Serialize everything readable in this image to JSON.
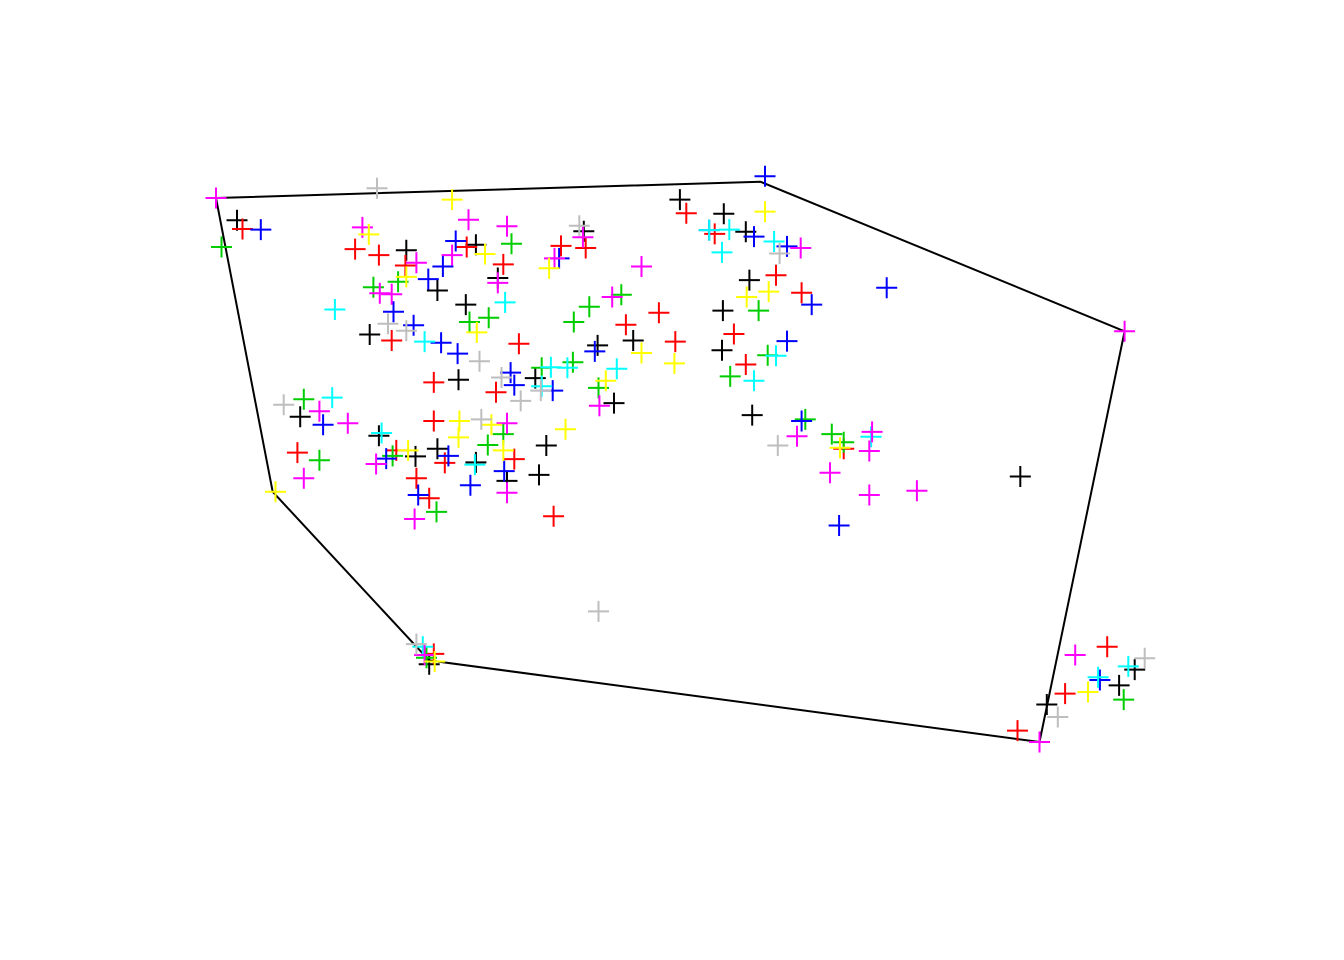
{
  "chart_data": {
    "type": "scatter",
    "title": "",
    "xlabel": "",
    "ylabel": "",
    "xlim": [
      0,
      100
    ],
    "ylim": [
      0,
      100
    ],
    "grid": false,
    "axes": false,
    "legend": "none",
    "marker": "plus",
    "palette": [
      "#000000",
      "#ff0000",
      "#00cd00",
      "#0000ff",
      "#00ffff",
      "#ff00ff",
      "#ffff00",
      "#bebebe"
    ],
    "hull": [
      [
        0.0,
        100.0
      ],
      [
        59.5,
        103.0
      ],
      [
        99.3,
        75.5
      ],
      [
        90.0,
        0.0
      ],
      [
        23.3,
        15.0
      ],
      [
        6.2,
        46.0
      ],
      [
        0.0,
        100.0
      ]
    ],
    "series": [
      {
        "color": "#000000",
        "points": [
          [
            2.3,
            95.9
          ],
          [
            20.8,
            90.4
          ],
          [
            27.3,
            80.4
          ],
          [
            16.8,
            74.9
          ],
          [
            26.5,
            66.6
          ],
          [
            9.2,
            59.8
          ],
          [
            17.8,
            56.3
          ],
          [
            21.8,
            52.5
          ],
          [
            28.4,
            51.4
          ],
          [
            31.8,
            48.0
          ],
          [
            36.1,
            54.5
          ],
          [
            30.8,
            85.3
          ],
          [
            50.7,
            99.7
          ],
          [
            55.5,
            97.1
          ],
          [
            57.9,
            93.8
          ],
          [
            55.3,
            72.0
          ],
          [
            45.6,
            73.8
          ],
          [
            41.7,
            72.9
          ],
          [
            34.9,
            66.9
          ],
          [
            43.5,
            62.3
          ],
          [
            58.3,
            84.9
          ],
          [
            55.4,
            79.3
          ],
          [
            58.6,
            60.1
          ],
          [
            35.3,
            49.1
          ],
          [
            23.3,
            14.3
          ],
          [
            24.2,
            53.9
          ],
          [
            87.9,
            48.8
          ],
          [
            90.8,
            6.9
          ],
          [
            98.7,
            10.4
          ],
          [
            100.4,
            13.3
          ],
          [
            28.4,
            91.4
          ],
          [
            40.2,
            93.9
          ],
          [
            24.2,
            83.0
          ]
        ]
      },
      {
        "color": "#ff0000",
        "points": [
          [
            2.9,
            94.3
          ],
          [
            15.2,
            90.6
          ],
          [
            17.8,
            89.5
          ],
          [
            20.7,
            87.6
          ],
          [
            19.2,
            73.8
          ],
          [
            33.1,
            73.2
          ],
          [
            30.6,
            64.3
          ],
          [
            23.8,
            66.1
          ],
          [
            23.8,
            59.0
          ],
          [
            8.9,
            53.2
          ],
          [
            19.7,
            53.6
          ],
          [
            21.9,
            48.5
          ],
          [
            25.0,
            51.3
          ],
          [
            32.6,
            52.0
          ],
          [
            23.3,
            44.8
          ],
          [
            36.9,
            41.5
          ],
          [
            48.4,
            78.9
          ],
          [
            50.2,
            73.6
          ],
          [
            44.8,
            76.7
          ],
          [
            56.6,
            75.0
          ],
          [
            57.9,
            69.4
          ],
          [
            51.4,
            97.2
          ],
          [
            54.5,
            93.4
          ],
          [
            61.2,
            85.8
          ],
          [
            64.0,
            82.6
          ],
          [
            92.8,
            8.9
          ],
          [
            97.4,
            17.5
          ],
          [
            87.6,
            2.1
          ],
          [
            68.6,
            53.9
          ],
          [
            23.8,
            16.2
          ],
          [
            37.7,
            91.2
          ],
          [
            31.4,
            87.8
          ],
          [
            40.4,
            90.8
          ],
          [
            27.4,
            91.0
          ]
        ]
      },
      {
        "color": "#00cd00",
        "points": [
          [
            0.6,
            91.0
          ],
          [
            17.2,
            83.6
          ],
          [
            19.9,
            84.6
          ],
          [
            32.3,
            91.6
          ],
          [
            39.1,
            77.2
          ],
          [
            40.8,
            80.0
          ],
          [
            44.3,
            82.2
          ],
          [
            39.0,
            69.8
          ],
          [
            29.8,
            78.0
          ],
          [
            9.6,
            63.0
          ],
          [
            11.3,
            51.8
          ],
          [
            19.3,
            52.6
          ],
          [
            24.1,
            42.3
          ],
          [
            29.7,
            54.6
          ],
          [
            31.4,
            56.6
          ],
          [
            41.8,
            65.1
          ],
          [
            60.3,
            71.1
          ],
          [
            59.3,
            79.3
          ],
          [
            64.4,
            59.3
          ],
          [
            67.3,
            56.6
          ],
          [
            99.2,
            7.8
          ],
          [
            23.0,
            15.5
          ],
          [
            35.6,
            68.8
          ],
          [
            27.7,
            77.2
          ],
          [
            56.2,
            67.2
          ],
          [
            68.6,
            55.1
          ]
        ]
      },
      {
        "color": "#0000ff",
        "points": [
          [
            4.9,
            94.2
          ],
          [
            24.8,
            87.4
          ],
          [
            23.2,
            85.1
          ],
          [
            19.4,
            79.1
          ],
          [
            21.6,
            76.6
          ],
          [
            24.6,
            73.4
          ],
          [
            26.4,
            71.4
          ],
          [
            32.2,
            67.9
          ],
          [
            32.6,
            65.6
          ],
          [
            11.7,
            58.3
          ],
          [
            18.6,
            52.1
          ],
          [
            25.4,
            52.6
          ],
          [
            22.1,
            45.4
          ],
          [
            27.8,
            47.2
          ],
          [
            31.5,
            49.8
          ],
          [
            41.4,
            71.8
          ],
          [
            36.8,
            64.6
          ],
          [
            58.8,
            92.9
          ],
          [
            62.4,
            91.1
          ],
          [
            65.1,
            80.4
          ],
          [
            60.0,
            104.0
          ],
          [
            62.4,
            73.7
          ],
          [
            73.3,
            83.5
          ],
          [
            68.1,
            39.8
          ],
          [
            96.6,
            11.4
          ],
          [
            64.0,
            59.0
          ],
          [
            53.9,
            94.1
          ],
          [
            26.2,
            92.1
          ],
          [
            37.5,
            88.9
          ]
        ]
      },
      {
        "color": "#00ffff",
        "points": [
          [
            13.0,
            79.5
          ],
          [
            22.8,
            73.6
          ],
          [
            12.7,
            63.3
          ],
          [
            18.1,
            56.8
          ],
          [
            28.3,
            51.0
          ],
          [
            43.8,
            68.6
          ],
          [
            38.4,
            68.8
          ],
          [
            56.1,
            94.2
          ],
          [
            61.0,
            92.0
          ],
          [
            55.3,
            90.0
          ],
          [
            58.8,
            66.4
          ],
          [
            61.2,
            71.0
          ],
          [
            71.6,
            56.1
          ],
          [
            96.4,
            11.9
          ],
          [
            99.7,
            13.9
          ],
          [
            22.6,
            17.5
          ],
          [
            31.6,
            80.8
          ],
          [
            35.6,
            65.4
          ],
          [
            53.9,
            94.1
          ],
          [
            36.6,
            68.9
          ]
        ]
      },
      {
        "color": "#ff00ff",
        "points": [
          [
            0.0,
            100.0
          ],
          [
            16.0,
            94.6
          ],
          [
            27.6,
            96.0
          ],
          [
            31.8,
            94.8
          ],
          [
            21.9,
            88.1
          ],
          [
            19.2,
            82.3
          ],
          [
            30.8,
            84.4
          ],
          [
            37.0,
            88.9
          ],
          [
            40.1,
            92.8
          ],
          [
            46.5,
            87.4
          ],
          [
            11.3,
            60.8
          ],
          [
            14.4,
            58.6
          ],
          [
            17.5,
            51.1
          ],
          [
            21.7,
            41.0
          ],
          [
            9.6,
            48.5
          ],
          [
            31.8,
            45.8
          ],
          [
            71.4,
            53.5
          ],
          [
            63.5,
            56.2
          ],
          [
            99.3,
            75.5
          ],
          [
            63.9,
            90.8
          ],
          [
            71.7,
            57.0
          ],
          [
            22.8,
            16.0
          ],
          [
            41.9,
            61.8
          ],
          [
            31.8,
            58.6
          ],
          [
            93.9,
            16.0
          ],
          [
            67.1,
            49.5
          ],
          [
            71.4,
            45.4
          ],
          [
            76.6,
            46.2
          ],
          [
            90.0,
            0.0
          ],
          [
            17.9,
            82.5
          ],
          [
            25.8,
            89.5
          ],
          [
            43.3,
            81.8
          ]
        ]
      },
      {
        "color": "#ffff00",
        "points": [
          [
            25.8,
            99.7
          ],
          [
            60.0,
            97.5
          ],
          [
            20.8,
            85.5
          ],
          [
            28.5,
            75.3
          ],
          [
            16.7,
            93.3
          ],
          [
            26.6,
            59.0
          ],
          [
            30.1,
            58.3
          ],
          [
            42.6,
            66.4
          ],
          [
            31.4,
            53.6
          ],
          [
            38.2,
            57.5
          ],
          [
            21.0,
            53.6
          ],
          [
            23.9,
            14.8
          ],
          [
            46.5,
            71.5
          ],
          [
            50.1,
            69.6
          ],
          [
            58.0,
            81.8
          ],
          [
            60.4,
            82.8
          ],
          [
            68.2,
            54.1
          ],
          [
            95.3,
            9.2
          ],
          [
            6.5,
            46.0
          ],
          [
            26.5,
            56.0
          ],
          [
            36.4,
            87.1
          ],
          [
            29.4,
            89.7
          ]
        ]
      },
      {
        "color": "#bebebe",
        "points": [
          [
            17.6,
            101.8
          ],
          [
            7.4,
            62.0
          ],
          [
            20.8,
            75.6
          ],
          [
            28.8,
            70.0
          ],
          [
            29.0,
            59.3
          ],
          [
            35.5,
            64.6
          ],
          [
            41.8,
            24.0
          ],
          [
            61.6,
            89.8
          ],
          [
            61.4,
            54.5
          ],
          [
            92.0,
            4.6
          ],
          [
            101.5,
            15.4
          ],
          [
            21.9,
            18.0
          ],
          [
            31.2,
            67.0
          ],
          [
            33.3,
            62.7
          ],
          [
            39.7,
            94.9
          ],
          [
            18.8,
            76.9
          ]
        ]
      }
    ]
  }
}
